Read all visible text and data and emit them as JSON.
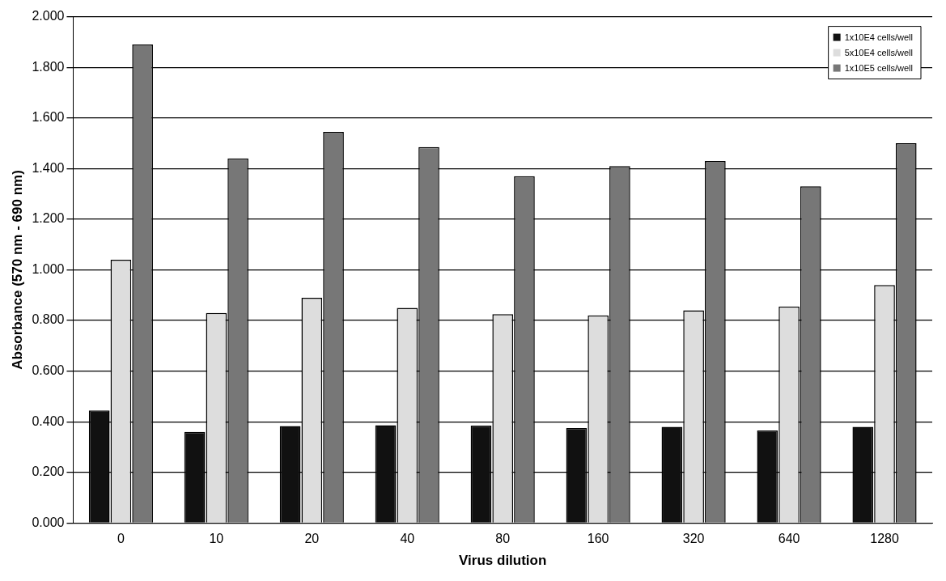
{
  "chart_data": {
    "type": "bar",
    "xlabel": "Virus dilution",
    "ylabel": "Absorbance (570 nm - 690 nm)",
    "categories": [
      "0",
      "10",
      "20",
      "40",
      "80",
      "160",
      "320",
      "640",
      "1280"
    ],
    "series": [
      {
        "name": "1x10E4 cells/well",
        "color": "#111111",
        "values": [
          0.445,
          0.36,
          0.383,
          0.386,
          0.385,
          0.375,
          0.38,
          0.366,
          0.38
        ]
      },
      {
        "name": "5x10E4 cells/well",
        "color": "#dddddd",
        "values": [
          1.04,
          0.83,
          0.89,
          0.85,
          0.825,
          0.82,
          0.84,
          0.855,
          0.94
        ]
      },
      {
        "name": "1x10E5 cells/well",
        "color": "#777777",
        "values": [
          1.89,
          1.44,
          1.545,
          1.485,
          1.37,
          1.41,
          1.43,
          1.33,
          1.5
        ]
      }
    ],
    "ylim": [
      0,
      2
    ],
    "yticks": [
      {
        "value": 0,
        "label": "0.000"
      },
      {
        "value": 0.2,
        "label": "0.200"
      },
      {
        "value": 0.4,
        "label": "0.400"
      },
      {
        "value": 0.6,
        "label": "0.600"
      },
      {
        "value": 0.8,
        "label": "0.800"
      },
      {
        "value": 1,
        "label": "1.000"
      },
      {
        "value": 1.2,
        "label": "1.200"
      },
      {
        "value": 1.4,
        "label": "1.400"
      },
      {
        "value": 1.6,
        "label": "1.600"
      },
      {
        "value": 1.8,
        "label": "1.800"
      },
      {
        "value": 2,
        "label": "2.000"
      }
    ],
    "grid": "y",
    "legend": "top right"
  }
}
